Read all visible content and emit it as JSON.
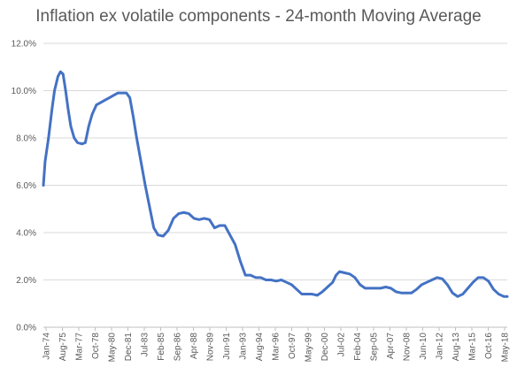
{
  "chart_data": {
    "type": "line",
    "title": "Inflation ex volatile components - 24-month Moving Average",
    "xlabel": "",
    "ylabel": "",
    "ylim": [
      0,
      12
    ],
    "y_ticks": [
      "0.0%",
      "2.0%",
      "4.0%",
      "6.0%",
      "8.0%",
      "10.0%",
      "12.0%"
    ],
    "grid": "horizontal",
    "legend": "none",
    "colors": {
      "line": "#4472c4",
      "grid": "#d9d9d9",
      "text": "#595959"
    },
    "x_tick_labels": [
      "Jan-74",
      "Aug-75",
      "Mar-77",
      "Oct-78",
      "May-80",
      "Dec-81",
      "Jul-83",
      "Feb-85",
      "Sep-86",
      "Apr-88",
      "Nov-89",
      "Jun-91",
      "Jan-93",
      "Aug-94",
      "Mar-96",
      "Oct-97",
      "May-99",
      "Dec-00",
      "Jul-02",
      "Feb-04",
      "Sep-05",
      "Apr-07",
      "Nov-08",
      "Jun-10",
      "Jan-12",
      "Aug-13",
      "Mar-15",
      "Oct-16",
      "May-18"
    ],
    "x_range": [
      "1974-01",
      "2019-03"
    ],
    "series": [
      {
        "values": [
          [
            "1974-01",
            6.0
          ],
          [
            "1974-03",
            7.0
          ],
          [
            "1974-07",
            8.0
          ],
          [
            "1974-11",
            9.2
          ],
          [
            "1975-02",
            10.0
          ],
          [
            "1975-06",
            10.6
          ],
          [
            "1975-09",
            10.8
          ],
          [
            "1975-12",
            10.7
          ],
          [
            "1976-03",
            10.0
          ],
          [
            "1976-06",
            9.2
          ],
          [
            "1976-09",
            8.5
          ],
          [
            "1977-01",
            8.0
          ],
          [
            "1977-05",
            7.8
          ],
          [
            "1977-10",
            7.75
          ],
          [
            "1978-02",
            7.8
          ],
          [
            "1978-06",
            8.5
          ],
          [
            "1978-10",
            9.0
          ],
          [
            "1979-03",
            9.4
          ],
          [
            "1979-08",
            9.5
          ],
          [
            "1980-01",
            9.6
          ],
          [
            "1980-06",
            9.7
          ],
          [
            "1980-11",
            9.8
          ],
          [
            "1981-04",
            9.9
          ],
          [
            "1981-09",
            9.9
          ],
          [
            "1982-02",
            9.9
          ],
          [
            "1982-06",
            9.7
          ],
          [
            "1982-10",
            8.9
          ],
          [
            "1983-02",
            8.0
          ],
          [
            "1983-07",
            7.0
          ],
          [
            "1983-12",
            6.0
          ],
          [
            "1984-05",
            5.1
          ],
          [
            "1984-10",
            4.2
          ],
          [
            "1985-03",
            3.9
          ],
          [
            "1985-09",
            3.85
          ],
          [
            "1986-03",
            4.1
          ],
          [
            "1986-09",
            4.6
          ],
          [
            "1987-03",
            4.8
          ],
          [
            "1987-09",
            4.85
          ],
          [
            "1988-03",
            4.8
          ],
          [
            "1988-09",
            4.6
          ],
          [
            "1989-03",
            4.55
          ],
          [
            "1989-09",
            4.6
          ],
          [
            "1990-03",
            4.55
          ],
          [
            "1990-09",
            4.2
          ],
          [
            "1991-03",
            4.3
          ],
          [
            "1991-09",
            4.3
          ],
          [
            "1992-03",
            3.9
          ],
          [
            "1992-09",
            3.5
          ],
          [
            "1993-03",
            2.8
          ],
          [
            "1993-09",
            2.2
          ],
          [
            "1994-03",
            2.2
          ],
          [
            "1994-09",
            2.1
          ],
          [
            "1995-03",
            2.1
          ],
          [
            "1995-09",
            2.0
          ],
          [
            "1996-03",
            2.0
          ],
          [
            "1996-09",
            1.95
          ],
          [
            "1997-03",
            2.0
          ],
          [
            "1997-09",
            1.9
          ],
          [
            "1998-03",
            1.8
          ],
          [
            "1998-09",
            1.6
          ],
          [
            "1999-03",
            1.4
          ],
          [
            "1999-09",
            1.4
          ],
          [
            "2000-03",
            1.4
          ],
          [
            "2000-09",
            1.35
          ],
          [
            "2001-03",
            1.5
          ],
          [
            "2001-09",
            1.7
          ],
          [
            "2002-03",
            1.9
          ],
          [
            "2002-07",
            2.2
          ],
          [
            "2002-11",
            2.35
          ],
          [
            "2003-05",
            2.3
          ],
          [
            "2003-11",
            2.25
          ],
          [
            "2004-05",
            2.1
          ],
          [
            "2004-11",
            1.8
          ],
          [
            "2005-05",
            1.65
          ],
          [
            "2005-11",
            1.65
          ],
          [
            "2006-05",
            1.65
          ],
          [
            "2006-11",
            1.65
          ],
          [
            "2007-05",
            1.7
          ],
          [
            "2007-11",
            1.65
          ],
          [
            "2008-05",
            1.5
          ],
          [
            "2008-11",
            1.45
          ],
          [
            "2009-05",
            1.45
          ],
          [
            "2009-11",
            1.45
          ],
          [
            "2010-05",
            1.6
          ],
          [
            "2010-11",
            1.8
          ],
          [
            "2011-05",
            1.9
          ],
          [
            "2011-11",
            2.0
          ],
          [
            "2012-05",
            2.1
          ],
          [
            "2012-11",
            2.05
          ],
          [
            "2013-05",
            1.8
          ],
          [
            "2013-11",
            1.45
          ],
          [
            "2014-05",
            1.3
          ],
          [
            "2014-11",
            1.4
          ],
          [
            "2015-05",
            1.65
          ],
          [
            "2015-11",
            1.9
          ],
          [
            "2016-05",
            2.1
          ],
          [
            "2016-11",
            2.1
          ],
          [
            "2017-05",
            1.95
          ],
          [
            "2017-11",
            1.6
          ],
          [
            "2018-05",
            1.4
          ],
          [
            "2018-11",
            1.3
          ],
          [
            "2019-03",
            1.3
          ]
        ]
      }
    ]
  }
}
